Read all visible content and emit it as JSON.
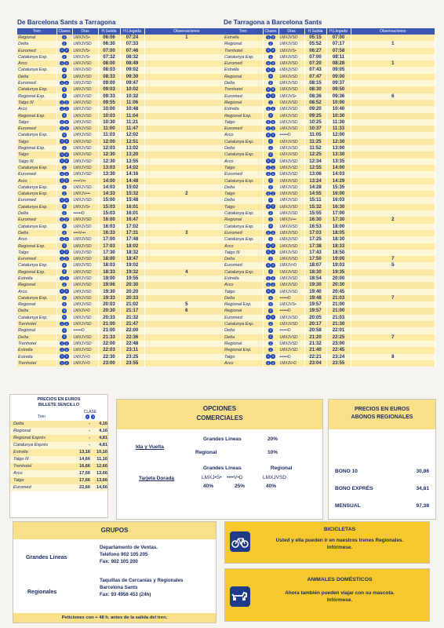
{
  "left": {
    "title": "De Barcelona  Sants a Tarragona",
    "headers": [
      "Tren",
      "Clases",
      "Días",
      "H.Salida",
      "H.Llegada",
      "Observaciones"
    ],
    "rows": [
      [
        "Regional",
        "2",
        "LMXJVS•",
        "06:06",
        "07:24",
        "1"
      ],
      [
        "Delta",
        "2",
        "LMXJVSD",
        "06:30",
        "07:33",
        ""
      ],
      [
        "Euromed",
        "12",
        "LMXJVS•",
        "07:00",
        "07:46",
        ""
      ],
      [
        "Catalunya Exp.",
        "2",
        "LMXJVS•",
        "07:32",
        "08:32",
        ""
      ],
      [
        "Arco",
        "12",
        "LMXJVSD",
        "08:00",
        "08:49",
        ""
      ],
      [
        "Catalunya Exp.",
        "2",
        "LMXJVSD",
        "08:03",
        "09:02",
        ""
      ],
      [
        "Delta",
        "2",
        "LMXJVSD",
        "08:33",
        "09:30",
        ""
      ],
      [
        "Euromed",
        "12",
        "LMXJVSD",
        "09:00",
        "09:47",
        ""
      ],
      [
        "Catalunya Exp.",
        "2",
        "LMXJVSD",
        "09:03",
        "10:02",
        ""
      ],
      [
        "Regional Exp.",
        "2",
        "LMXJVSD",
        "09:33",
        "10:32",
        ""
      ],
      [
        "Talgo III",
        "12",
        "LMXJVSD",
        "09:55",
        "11:06",
        ""
      ],
      [
        "Arco",
        "12",
        "LMXJVSD",
        "10:00",
        "10:48",
        ""
      ],
      [
        "Regional Exp.",
        "2",
        "LMXJVSD",
        "10:03",
        "11:04",
        ""
      ],
      [
        "Talgo",
        "12",
        "LMXJVSD",
        "10:30",
        "11:21",
        ""
      ],
      [
        "Euromed",
        "12",
        "LMXJVSD",
        "11:00",
        "11:47",
        ""
      ],
      [
        "Catalunya Exp.",
        "2",
        "LMXJVSD",
        "11:03",
        "12:02",
        ""
      ],
      [
        "Talgo",
        "12",
        "LMXJVSD",
        "12:00",
        "12:51",
        ""
      ],
      [
        "Regional Exp.",
        "2",
        "LMXJVSD",
        "12:03",
        "13:02",
        ""
      ],
      [
        "Talgo",
        "12",
        "LMXJVSD",
        "12:30",
        "13:20",
        ""
      ],
      [
        "Talgo III",
        "12",
        "LMXJVSD",
        "12:30",
        "13:55",
        ""
      ],
      [
        "Catalunya Exp.",
        "2",
        "LMXJVSD",
        "13:03",
        "14:02",
        ""
      ],
      [
        "Euromed",
        "12",
        "LMXJVSD",
        "13:30",
        "14:16",
        ""
      ],
      [
        "Arco",
        "12",
        "•••••V••",
        "14:00",
        "14:48",
        ""
      ],
      [
        "Catalunya Exp.",
        "2",
        "LMXJVSD",
        "14:03",
        "15:02",
        ""
      ],
      [
        "Catalunya Exp.",
        "2",
        "LMXJV•••",
        "14:33",
        "15:32",
        "2"
      ],
      [
        "Euromed",
        "12",
        "LMXJVSD",
        "15:00",
        "15:48",
        ""
      ],
      [
        "Catalunya Exp.",
        "2",
        "LMXJVS•",
        "15:03",
        "16:01",
        ""
      ],
      [
        "Delta",
        "2",
        "••••••D",
        "15:03",
        "16:01",
        ""
      ],
      [
        "Euromed",
        "12",
        "LMXJVSD",
        "16:00",
        "16:47",
        ""
      ],
      [
        "Catalunya Exp.",
        "2",
        "LMXJVSD",
        "16:03",
        "17:02",
        ""
      ],
      [
        "Delta",
        "2",
        "••••V•••",
        "16:33",
        "17:31",
        "3"
      ],
      [
        "Arco",
        "12",
        "LMXJVSD",
        "17:00",
        "17:48",
        ""
      ],
      [
        "Regional Exp.",
        "2",
        "LMXJVSD",
        "17:03",
        "18:02",
        ""
      ],
      [
        "Talgo",
        "12",
        "LMXJVSD",
        "17:30",
        "18:32",
        ""
      ],
      [
        "Euromed",
        "12",
        "LMXJVSD",
        "18:00",
        "18:47",
        ""
      ],
      [
        "Catalunya Exp.",
        "2",
        "LMXJVSD",
        "18:03",
        "19:02",
        ""
      ],
      [
        "Regional Exp.",
        "2",
        "LMXJVSD",
        "18:33",
        "19:32",
        "4"
      ],
      [
        "Estrella",
        "12",
        "LMXJVSD",
        "19:00",
        "19:55",
        ""
      ],
      [
        "Regional",
        "2",
        "LMXJVSD",
        "19:06",
        "20:30",
        ""
      ],
      [
        "Arco",
        "12",
        "LMXJVSD",
        "19:30",
        "20:20",
        ""
      ],
      [
        "Catalunya Exp.",
        "2",
        "LMXJVSD",
        "19:33",
        "20:33",
        ""
      ],
      [
        "Regional",
        "2",
        "LMXJVSD",
        "20:03",
        "21:02",
        "5"
      ],
      [
        "Delta",
        "2",
        "LMXJV•D",
        "20:30",
        "21:17",
        "6"
      ],
      [
        "Catalunya Exp.",
        "2",
        "LMXJVSD",
        "20:33",
        "21:32",
        ""
      ],
      [
        "Trenhotel",
        "12",
        "LMXJVSD",
        "21:00",
        "21:47",
        ""
      ],
      [
        "Regional",
        "2",
        "••••••D",
        "21:00",
        "22:00",
        ""
      ],
      [
        "Delta",
        "2",
        "LMXJVSD",
        "21:33",
        "22:36",
        ""
      ],
      [
        "Trenhotel",
        "12",
        "LMXJVSD",
        "22:00",
        "22:48",
        ""
      ],
      [
        "Estrella",
        "12",
        "LMXJVSD",
        "22:03",
        "23:11",
        ""
      ],
      [
        "Estrella",
        "12",
        "LMXJV•D",
        "22:30",
        "23:25",
        ""
      ],
      [
        "Trenhotel",
        "12",
        "LMXJV•D",
        "23:00",
        "23:55",
        ""
      ]
    ]
  },
  "right": {
    "title": "De Tarragona a Barcelona Sants",
    "headers": [
      "Tren",
      "Clases",
      "Días",
      "H.Salida",
      "H.Llegada",
      "Observaciones"
    ],
    "rows": [
      [
        "Estrella",
        "12",
        "LMXJVSD",
        "05:15",
        "07:00",
        ""
      ],
      [
        "Regional",
        "2",
        "LMXJVSD",
        "05:52",
        "07:17",
        "1"
      ],
      [
        "Trenhotel",
        "12",
        "LMXJVS•",
        "06:27",
        "07:58",
        ""
      ],
      [
        "Catalunya Exp.",
        "2",
        "LMXJVSD",
        "07:00",
        "08:11",
        ""
      ],
      [
        "Euromed",
        "12",
        "LMXJVSD",
        "07:20",
        "08:28",
        "1"
      ],
      [
        "Estrella",
        "12",
        "LMXJVSD",
        "07:43",
        "09:05",
        ""
      ],
      [
        "Regional",
        "2",
        "LMXJVSD",
        "07:47",
        "09:00",
        ""
      ],
      [
        "Delta",
        "2",
        "LMXJVSD",
        "08:15",
        "09:37",
        ""
      ],
      [
        "Trenhotel",
        "12",
        "LMXJVSD",
        "08:30",
        "09:50",
        ""
      ],
      [
        "Euromed",
        "12",
        "LMXJVS•",
        "08:36",
        "09:36",
        "6"
      ],
      [
        "Regional",
        "2",
        "LMXJVSD",
        "08:52",
        "10:00",
        ""
      ],
      [
        "Estrella",
        "12",
        "LMXJVSD",
        "09:20",
        "10:40",
        ""
      ],
      [
        "Regional Exp.",
        "2",
        "LMXJVSD",
        "09:25",
        "10:30",
        ""
      ],
      [
        "Talgo",
        "12",
        "LMXJVSD",
        "10:25",
        "11:30",
        ""
      ],
      [
        "Euromed",
        "12",
        "LMXJVSD",
        "10:37",
        "11:33",
        ""
      ],
      [
        "Arco",
        "12",
        "••••••D",
        "11:05",
        "12:00",
        ""
      ],
      [
        "Catalunya Exp.",
        "2",
        "LMXJVSD",
        "11:25",
        "12:30",
        ""
      ],
      [
        "Delta",
        "2",
        "LMXJVSD",
        "11:52",
        "13:00",
        ""
      ],
      [
        "Catalunya Exp.",
        "2",
        "LMXJVSD",
        "12:25",
        "13:30",
        ""
      ],
      [
        "Arco",
        "12",
        "LMXJVSD",
        "12:34",
        "13:35",
        ""
      ],
      [
        "Talgo",
        "12",
        "LMXJVSD",
        "12:55",
        "14:00",
        ""
      ],
      [
        "Euromed",
        "12",
        "LMXJVSD",
        "13:06",
        "14:03",
        ""
      ],
      [
        "Catalunya Exp.",
        "2",
        "LMXJVSD",
        "13:24",
        "14:29",
        ""
      ],
      [
        "Delta",
        "2",
        "LMXJVSD",
        "14:28",
        "15:35",
        ""
      ],
      [
        "Talgo",
        "12",
        "LMXJVSD",
        "14:55",
        "16:00",
        ""
      ],
      [
        "Delta",
        "2",
        "LMXJVSD",
        "15:11",
        "16:03",
        ""
      ],
      [
        "Talgo",
        "12",
        "LMXJVSD",
        "15:32",
        "16:30",
        ""
      ],
      [
        "Catalunya Exp.",
        "2",
        "LMXJVSD",
        "15:55",
        "17:00",
        ""
      ],
      [
        "Regional",
        "2",
        "LMXJV•••",
        "16:30",
        "17:30",
        "2"
      ],
      [
        "Catalunya Exp.",
        "2",
        "LMXJVSD",
        "16:53",
        "18:00",
        ""
      ],
      [
        "Euromed",
        "12",
        "LMXJVSD",
        "17:03",
        "18:05",
        ""
      ],
      [
        "Catalunya Exp.",
        "2",
        "LMXJVSD",
        "17:25",
        "18:30",
        ""
      ],
      [
        "Arco",
        "12",
        "LMXJVSD",
        "17:38",
        "18:33",
        ""
      ],
      [
        "Talgo III",
        "12",
        "LMXJVSD",
        "17:43",
        "18:50",
        ""
      ],
      [
        "Delta",
        "2",
        "LMXJVSD",
        "17:50",
        "19:00",
        "7"
      ],
      [
        "Euromed",
        "12",
        "LMXJV•D",
        "18:07",
        "19:03",
        "5"
      ],
      [
        "Catalunya Exp.",
        "2",
        "LMXJVSD",
        "18:30",
        "19:35",
        ""
      ],
      [
        "Estrella",
        "12",
        "LMXJVSD",
        "18:54",
        "20:00",
        ""
      ],
      [
        "Arco",
        "12",
        "LMXJVSD",
        "19:30",
        "20:30",
        ""
      ],
      [
        "Talgo",
        "12",
        "LMXJVSD",
        "19:40",
        "20:45",
        ""
      ],
      [
        "Delta",
        "2",
        "••••••D",
        "19:48",
        "21:03",
        "7"
      ],
      [
        "Regional Exp.",
        "2",
        "LMXJVS•",
        "19:57",
        "21:00",
        ""
      ],
      [
        "Regional",
        "2",
        "••••••D",
        "19:57",
        "21:00",
        ""
      ],
      [
        "Euromed",
        "12",
        "LMXJVSD",
        "20:05",
        "21:03",
        ""
      ],
      [
        "Catalunya Exp.",
        "2",
        "LMXJVSD",
        "20:17",
        "21:30",
        ""
      ],
      [
        "Delta",
        "2",
        "••••••D",
        "20:58",
        "22:01",
        ""
      ],
      [
        "Delta",
        "2",
        "LMXJVSD",
        "21:20",
        "22:25",
        "7"
      ],
      [
        "Regional",
        "2",
        "LMXJVSD",
        "21:32",
        "23:00",
        ""
      ],
      [
        "Regional Exp.",
        "2",
        "LMXJVSD",
        "21:40",
        "22:45",
        ""
      ],
      [
        "Talgo",
        "12",
        "••••••D",
        "22:21",
        "23:24",
        "8"
      ],
      [
        "Arco",
        "12",
        "LMXJV•D",
        "23:04",
        "23:55",
        ""
      ]
    ]
  },
  "precios": {
    "title1": "PRECIOS EN EUROS",
    "title2": "BILLETE SENCILLO",
    "col_tren": "Tren",
    "col_clase": "CLASE",
    "rows": [
      [
        "Delta",
        "-",
        "4,16"
      ],
      [
        "Regional",
        "-",
        "4,16"
      ],
      [
        "Regional Exprés",
        "-",
        "4,81"
      ],
      [
        "Catalunya Exprés",
        "-",
        "4,81"
      ],
      [
        "Estrella",
        "13,16",
        "10,16"
      ],
      [
        "Talgo III",
        "14,66",
        "11,16"
      ],
      [
        "Trenhotel",
        "16,66",
        "12,66"
      ],
      [
        "Arco",
        "17,66",
        "13,66"
      ],
      [
        "Talgo",
        "17,66",
        "13,66"
      ],
      [
        "Euromed",
        "22,66",
        "14,66"
      ]
    ]
  },
  "opciones": {
    "title1": "OPCIONES",
    "title2": "COMERCIALES",
    "ida_vuelta": "Ida y Vuelta",
    "grandes": "Grandes Líneas",
    "grandes_pct": "20%",
    "regional": "Regional",
    "regional_pct": "10%",
    "tarjeta": "Tarjeta Dorada",
    "grandes2": "Grandes Líneas",
    "regional2": "Regional",
    "d1": "LMXJ•S•",
    "d2": "••••V•D",
    "d3": "LMXJVSD",
    "p1": "40%",
    "p2": "25%",
    "p3": "40%"
  },
  "abonos": {
    "title1": "PRECIOS EN EUROS",
    "title2": "ABONOS REGIONALES",
    "rows": [
      [
        "BONO 10",
        "30,86"
      ],
      [
        "BONO EXPRÉS",
        "34,81"
      ],
      [
        "MENSUAL",
        "97,38"
      ]
    ]
  },
  "grupos": {
    "title": "GRUPOS",
    "gl": "Grandes Líneas",
    "gl_l1": "Departamento de Ventas.",
    "gl_l2": "Teléfono 902 105 205",
    "gl_l3": "Fax: 902 105 200",
    "reg": "Regionales",
    "reg_l1": "Taquillas de Cercanías y Regionales",
    "reg_l2": "Barcelona Sants",
    "reg_l3": "Fax: 93 4956 453 (24h)",
    "foot": "Peticiones con + 48 h. antes de la salida del tren."
  },
  "bicicletas": {
    "title": "BICICLETAS",
    "l1": "Usted y ella pueden ir en nuestros trenes Regionales.",
    "l2": "Infórmese."
  },
  "animales": {
    "title": "ANIMALES DOMÉSTICOS",
    "l1": "Ahora también pueden viajar con su mascota.",
    "l2": "Infórmese."
  }
}
